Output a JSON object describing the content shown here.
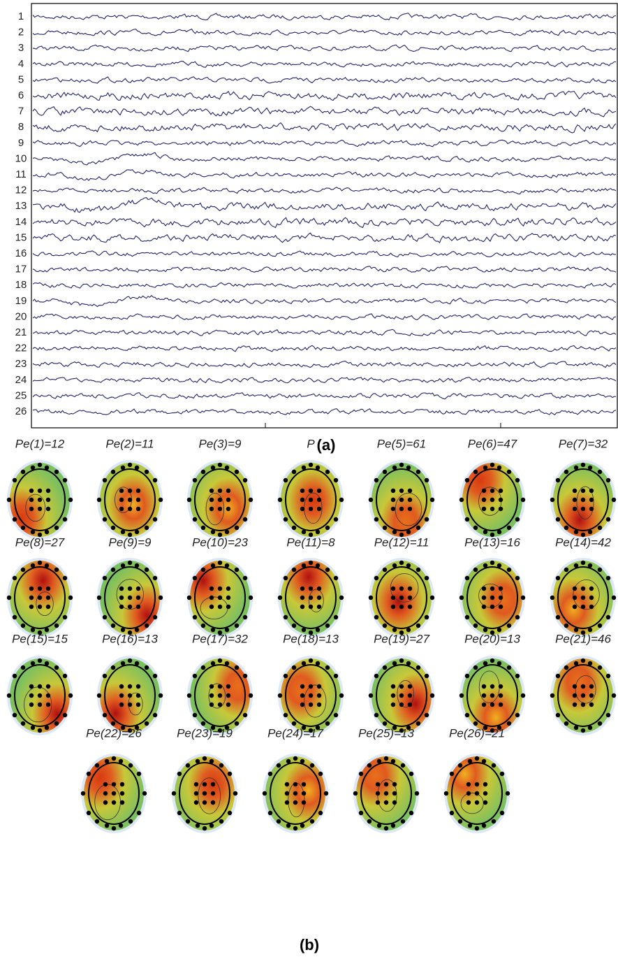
{
  "figure": {
    "panel_a": {
      "label": "(a)",
      "channels": [
        "1",
        "2",
        "3",
        "4",
        "5",
        "6",
        "7",
        "8",
        "9",
        "10",
        "11",
        "12",
        "13",
        "14",
        "15",
        "16",
        "17",
        "18",
        "19",
        "20",
        "21",
        "22",
        "23",
        "24",
        "25",
        "26"
      ]
    },
    "panel_b": {
      "label": "(b)",
      "maps": [
        "Pe(1)=12",
        "Pe(2)=11",
        "Pe(3)=9",
        "P",
        "Pe(5)=61",
        "Pe(6)=47",
        "Pe(7)=32",
        "Pe(8)=27",
        "Pe(9)=9",
        "Pe(10)=23",
        "Pe(11)=8",
        "Pe(12)=11",
        "Pe(13)=16",
        "Pe(14)=42",
        "Pe(15)=15",
        "Pe(16)=13",
        "Pe(17)=32",
        "Pe(18)=13",
        "Pe(19)=27",
        "Pe(20)=13",
        "Pe(21)=46",
        "Pe(22)=26",
        "Pe(23)=19",
        "Pe(24)=17",
        "Pe(25)=13",
        "Pe(26)=21"
      ]
    }
  }
}
